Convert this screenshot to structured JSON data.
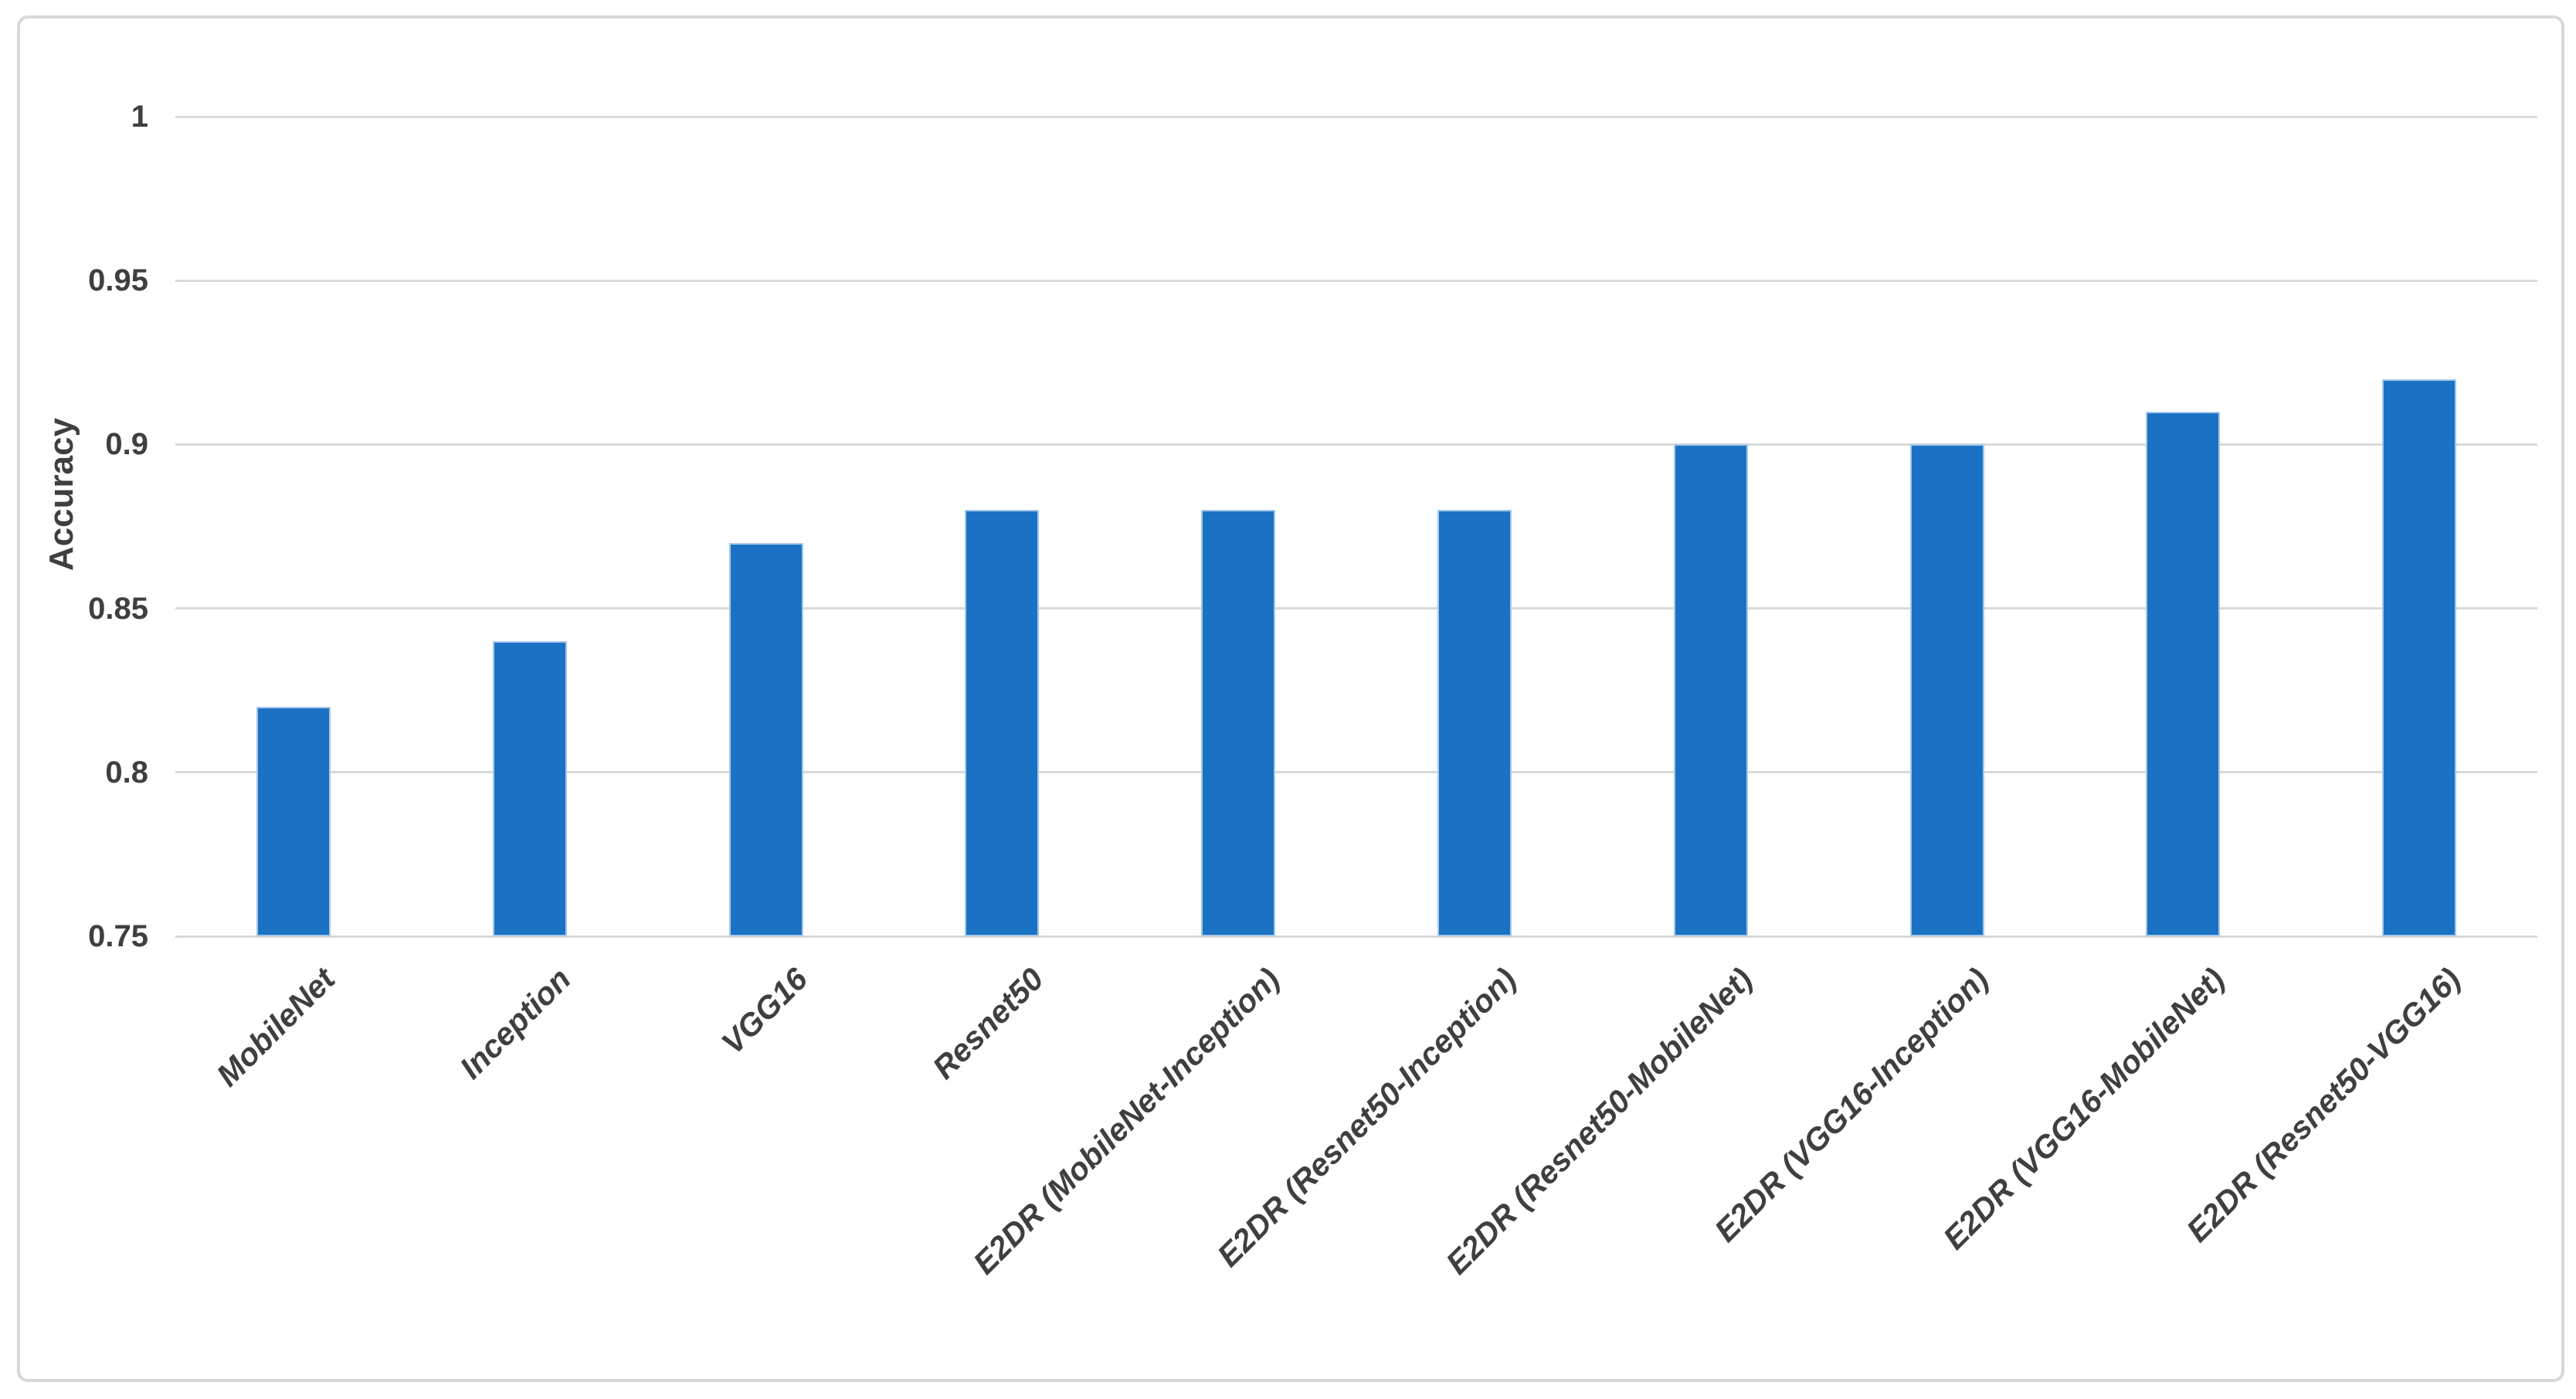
{
  "chart_data": {
    "type": "bar",
    "title": "",
    "xlabel": "",
    "ylabel": "Accuracy",
    "categories": [
      "MobileNet",
      "Inception",
      "VGG16",
      "Resnet50",
      "E2DR (MobileNet-Inception)",
      "E2DR (Resnet50-Inception)",
      "E2DR (Resnet50-MobileNet)",
      "E2DR (VGG16-Inception)",
      "E2DR (VGG16-MobileNet)",
      "E2DR (Resnet50-VGG16)"
    ],
    "values": [
      0.82,
      0.84,
      0.87,
      0.88,
      0.88,
      0.88,
      0.9,
      0.9,
      0.91,
      0.92
    ],
    "ylim": [
      0.75,
      1
    ],
    "yticks": [
      {
        "value": 1,
        "label": "1"
      },
      {
        "value": 0.95,
        "label": "0.95"
      },
      {
        "value": 0.9,
        "label": "0.9"
      },
      {
        "value": 0.85,
        "label": "0.85"
      },
      {
        "value": 0.8,
        "label": "0.8"
      },
      {
        "value": 0.75,
        "label": "0.75"
      }
    ],
    "grid": true,
    "legend": false,
    "colors": {
      "bar_fill": "#1B72C4",
      "bar_edge": "#A6C8EA",
      "gridline": "#D9D9D9",
      "axis_text": "#3F3F3F",
      "frame_border": "#D8D8D8",
      "background": "#FFFFFF"
    }
  }
}
